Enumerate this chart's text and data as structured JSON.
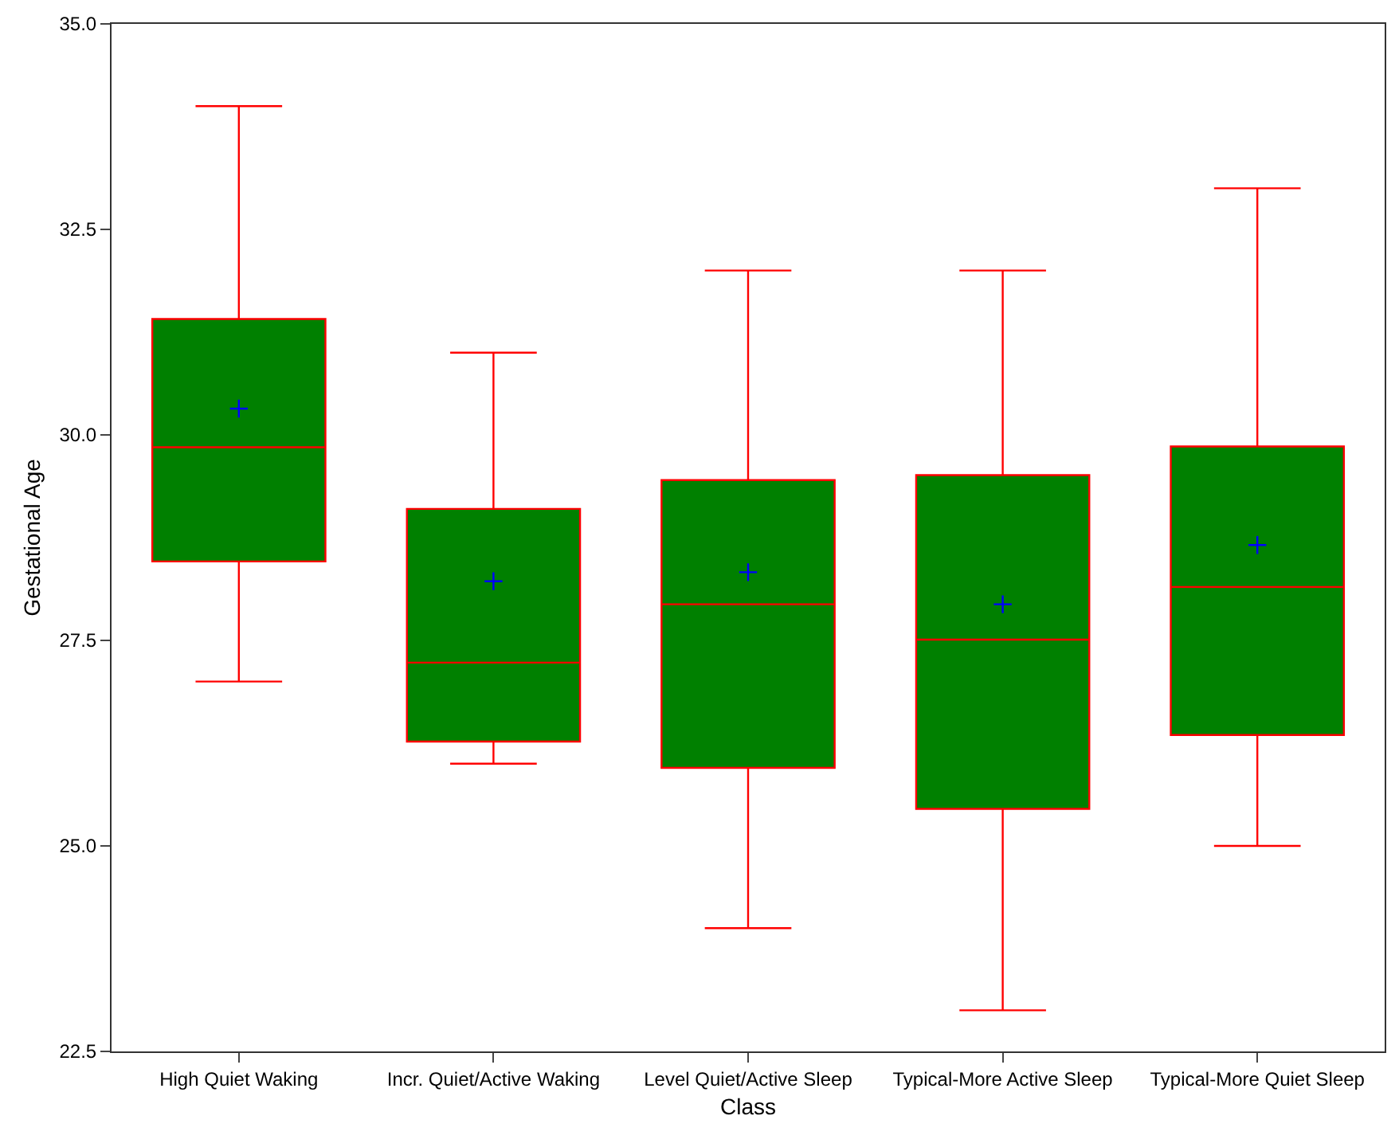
{
  "chart_data": {
    "type": "box",
    "xlabel": "Class",
    "ylabel": "Gestational Age",
    "color": "#008000",
    "categories": [
      "High Quiet Waking",
      "Incr. Quiet/Active Waking",
      "Level Quiet/Active Sleep",
      "Typical-More Active Sleep",
      "Typical-More Quiet Sleep"
    ],
    "boxes": [
      {
        "low": 27.0,
        "q1": 28.46,
        "median": 29.85,
        "q3": 31.41,
        "high": 34.0,
        "mean": 30.32
      },
      {
        "low": 26.0,
        "q1": 26.27,
        "median": 27.23,
        "q3": 29.1,
        "high": 31.0,
        "mean": 28.22
      },
      {
        "low": 24.0,
        "q1": 25.95,
        "median": 27.94,
        "q3": 29.45,
        "high": 32.0,
        "mean": 28.33
      },
      {
        "low": 23.0,
        "q1": 25.45,
        "median": 27.51,
        "q3": 29.51,
        "high": 32.0,
        "mean": 27.94
      },
      {
        "low": 25.0,
        "q1": 26.35,
        "median": 28.15,
        "q3": 29.86,
        "high": 33.0,
        "mean": 28.66
      }
    ],
    "ylim": [
      22.5,
      35.0
    ],
    "yticks": [
      {
        "value": 22.5,
        "label": "22.5"
      },
      {
        "value": 25,
        "label": "25.0"
      },
      {
        "value": 27.5,
        "label": "27.5"
      },
      {
        "value": 30,
        "label": "30.0"
      },
      {
        "value": 32.5,
        "label": "32.5"
      },
      {
        "value": 35,
        "label": "35.0"
      }
    ]
  }
}
